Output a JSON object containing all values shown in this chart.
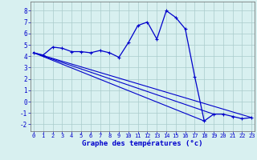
{
  "xlabel": "Graphe des températures (°c)",
  "bg_color": "#d8f0f0",
  "grid_color": "#aacccc",
  "line_color": "#0000cc",
  "x_ticks": [
    0,
    1,
    2,
    3,
    4,
    5,
    6,
    7,
    8,
    9,
    10,
    11,
    12,
    13,
    14,
    15,
    16,
    17,
    18,
    19,
    20,
    21,
    22,
    23
  ],
  "y_ticks": [
    -2,
    -1,
    0,
    1,
    2,
    3,
    4,
    5,
    6,
    7,
    8
  ],
  "ylim": [
    -2.6,
    8.8
  ],
  "xlim": [
    -0.3,
    23.3
  ],
  "curve1": {
    "x": [
      0,
      1,
      2,
      3,
      4,
      5,
      6,
      7,
      8,
      9,
      10,
      11,
      12,
      13,
      14,
      15,
      16,
      17,
      18,
      19,
      20,
      21,
      22,
      23
    ],
    "y": [
      4.3,
      4.1,
      4.8,
      4.7,
      4.4,
      4.4,
      4.3,
      4.5,
      4.3,
      3.9,
      5.2,
      6.7,
      7.0,
      5.5,
      8.0,
      7.4,
      6.4,
      2.2,
      -1.7,
      -1.1,
      -1.1,
      -1.3,
      -1.5,
      -1.4
    ]
  },
  "line1": {
    "x": [
      0,
      18
    ],
    "y": [
      4.3,
      -1.7
    ]
  },
  "line2": {
    "x": [
      0,
      19
    ],
    "y": [
      4.3,
      -1.1
    ]
  },
  "line3": {
    "x": [
      0,
      23
    ],
    "y": [
      4.3,
      -1.4
    ]
  },
  "xlabel_fontsize": 6.5,
  "xlabel_bold": true,
  "tick_fontsize_x": 5.0,
  "tick_fontsize_y": 5.5
}
